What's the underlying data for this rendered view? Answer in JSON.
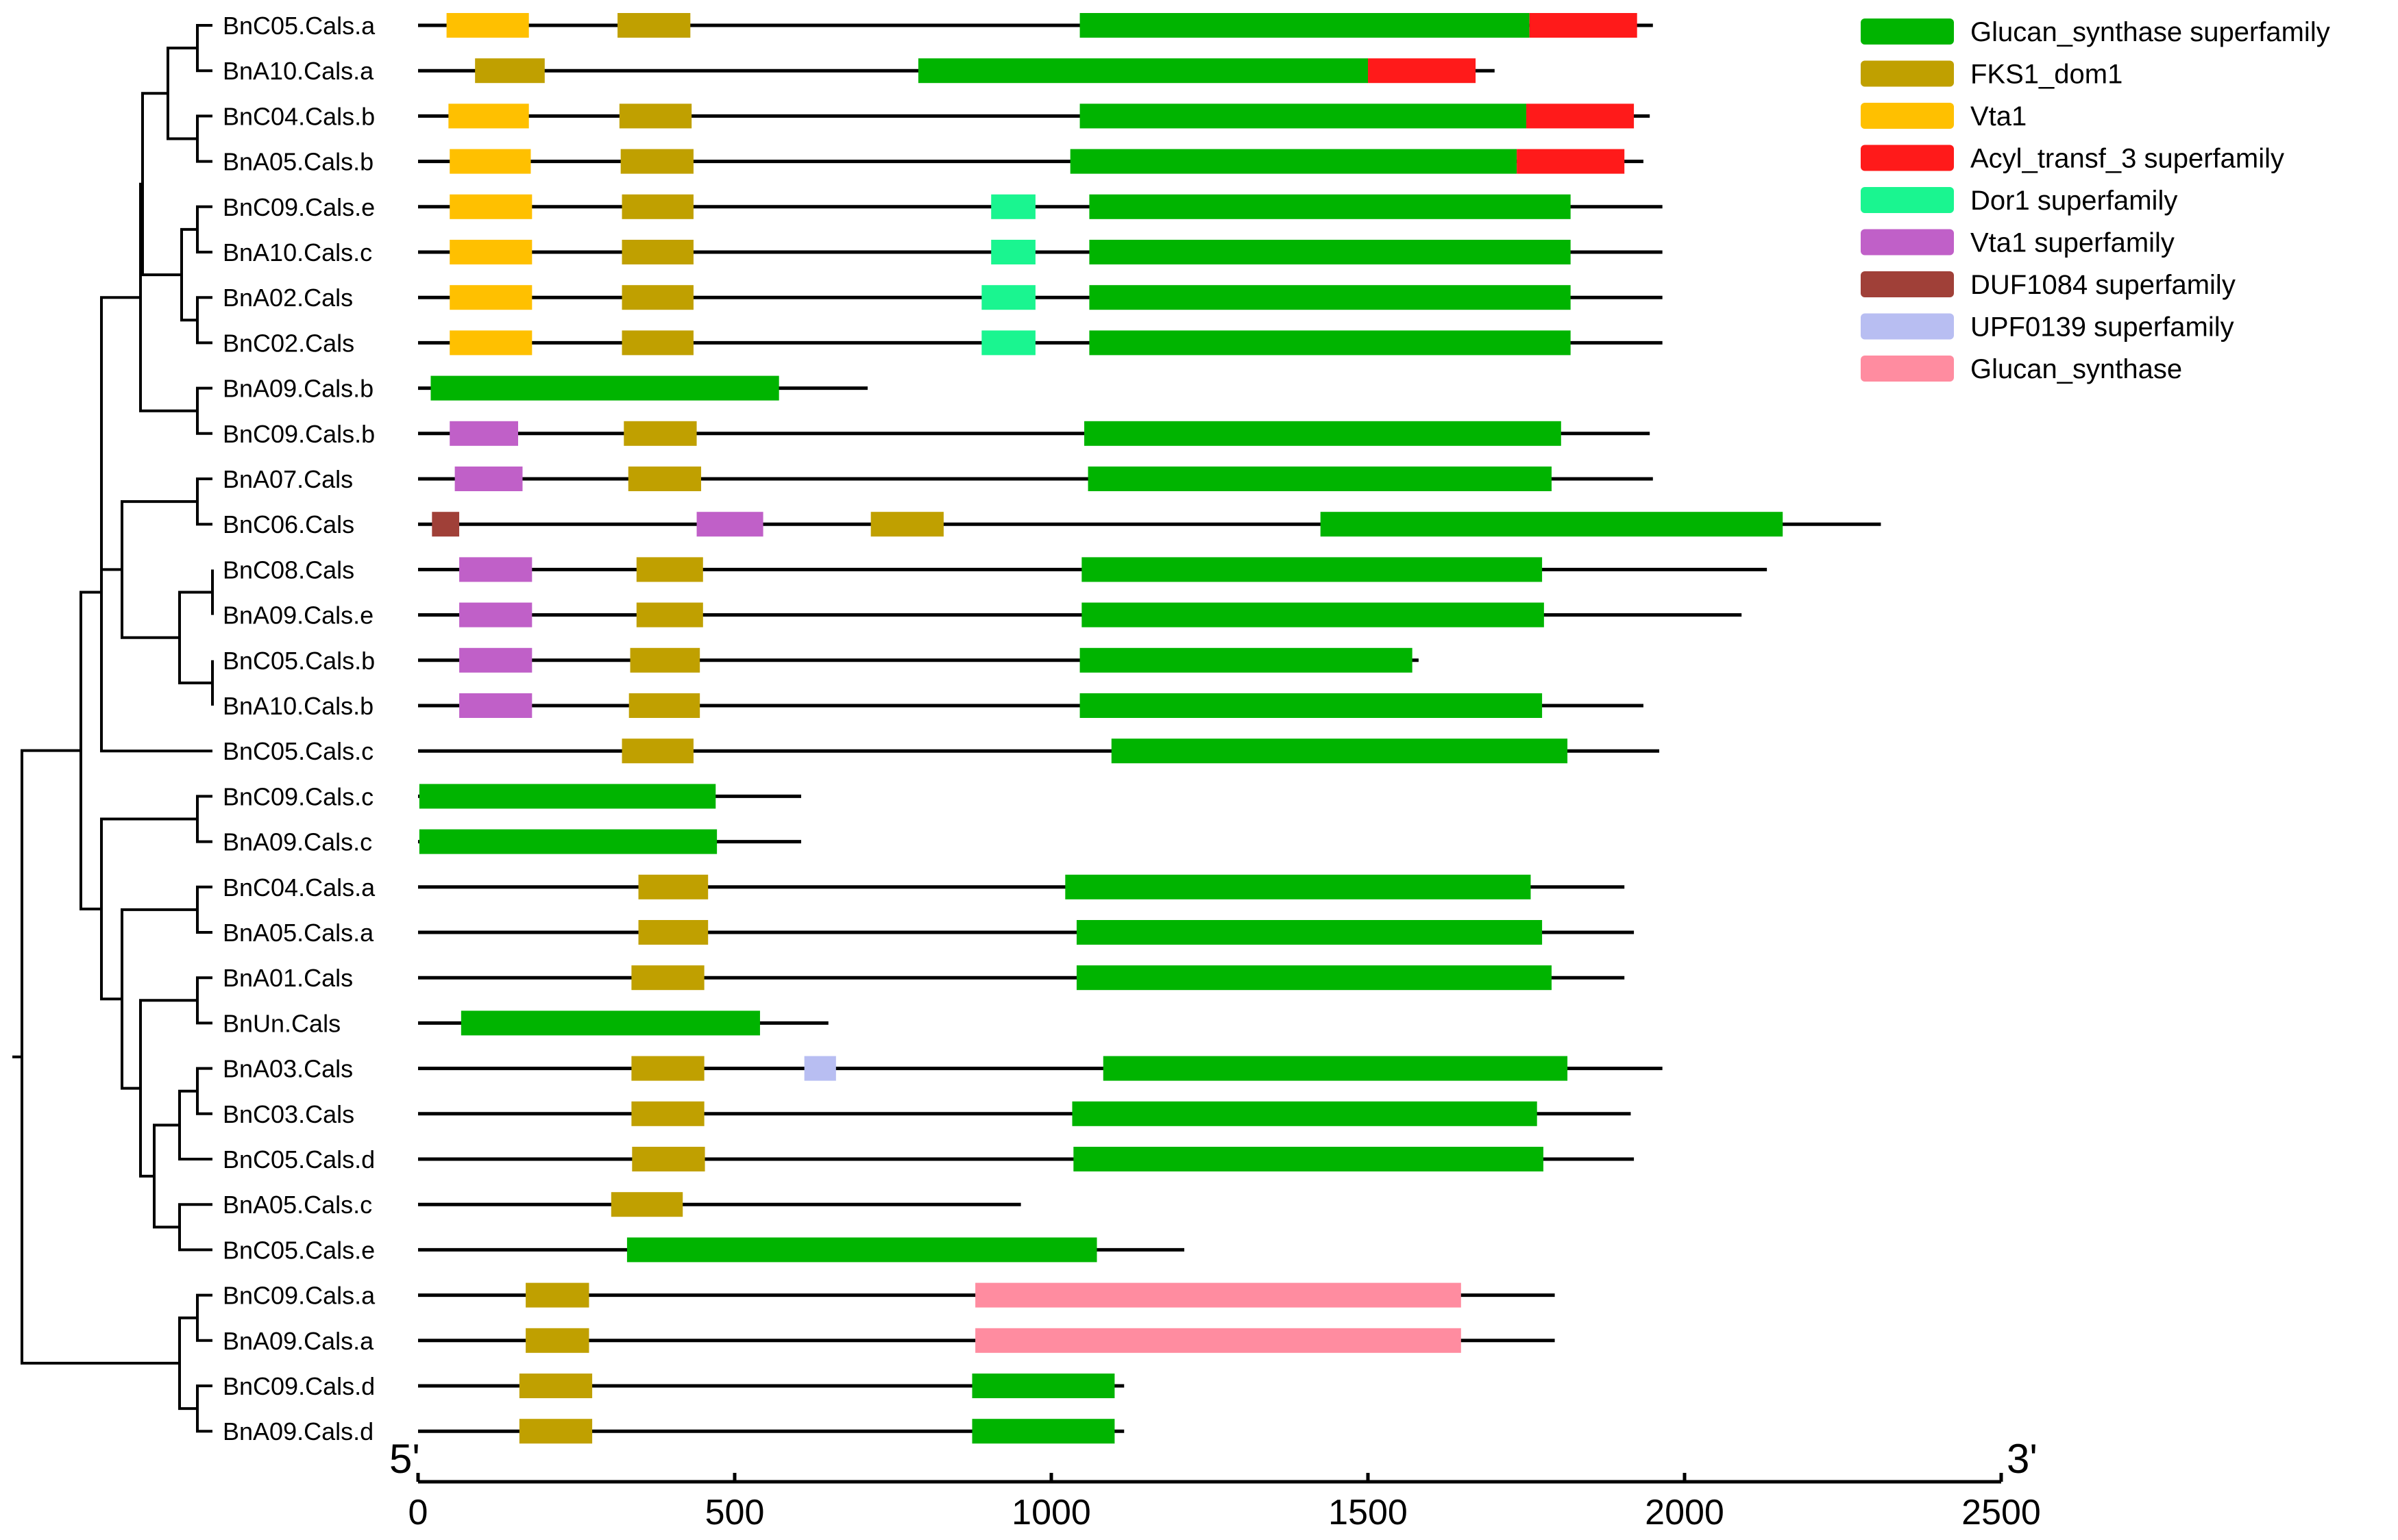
{
  "colors": {
    "Glucan_synthase superfamily": "#00B400",
    "FKS1_dom1": "#C0A000",
    "Vta1": "#FFC000",
    "Acyl_transf_3 superfamily": "#FF1A1A",
    "Dor1 superfamily": "#1AF590",
    "Vta1 superfamily": "#C060C8",
    "DUF1084 superfamily": "#A04038",
    "UPF0139 superfamily": "#B8BEF2",
    "Glucan_synthase": "#FF8CA0"
  },
  "legend": [
    "Glucan_synthase superfamily",
    "FKS1_dom1",
    "Vta1",
    "Acyl_transf_3 superfamily",
    "Dor1 superfamily",
    "Vta1 superfamily",
    "DUF1084 superfamily",
    "UPF0139 superfamily",
    "Glucan_synthase"
  ],
  "axis": {
    "min": 0,
    "max": 2500,
    "ticks": [
      0,
      500,
      1000,
      1500,
      2000,
      2500
    ],
    "tick_labels": [
      "0",
      "500",
      "1000",
      "1500",
      "2000",
      "2500"
    ],
    "start_label": "5'",
    "end_label": "3'"
  },
  "genes": [
    {
      "name": "BnC05.Cals.a",
      "length": 1950,
      "domains": [
        {
          "type": "Vta1",
          "start": 45,
          "end": 175
        },
        {
          "type": "FKS1_dom1",
          "start": 315,
          "end": 430
        },
        {
          "type": "Glucan_synthase superfamily",
          "start": 1045,
          "end": 1755
        },
        {
          "type": "Acyl_transf_3 superfamily",
          "start": 1755,
          "end": 1925
        }
      ]
    },
    {
      "name": "BnA10.Cals.a",
      "length": 1700,
      "domains": [
        {
          "type": "FKS1_dom1",
          "start": 90,
          "end": 200
        },
        {
          "type": "Glucan_synthase superfamily",
          "start": 790,
          "end": 1500
        },
        {
          "type": "Acyl_transf_3 superfamily",
          "start": 1500,
          "end": 1670
        }
      ]
    },
    {
      "name": "BnC04.Cals.b",
      "length": 1945,
      "domains": [
        {
          "type": "Vta1",
          "start": 48,
          "end": 175
        },
        {
          "type": "FKS1_dom1",
          "start": 318,
          "end": 432
        },
        {
          "type": "Glucan_synthase superfamily",
          "start": 1045,
          "end": 1750
        },
        {
          "type": "Acyl_transf_3 superfamily",
          "start": 1750,
          "end": 1920
        }
      ]
    },
    {
      "name": "BnA05.Cals.b",
      "length": 1935,
      "domains": [
        {
          "type": "Vta1",
          "start": 50,
          "end": 178
        },
        {
          "type": "FKS1_dom1",
          "start": 320,
          "end": 435
        },
        {
          "type": "Glucan_synthase superfamily",
          "start": 1030,
          "end": 1735
        },
        {
          "type": "Acyl_transf_3 superfamily",
          "start": 1735,
          "end": 1905
        }
      ]
    },
    {
      "name": "BnC09.Cals.e",
      "length": 1965,
      "domains": [
        {
          "type": "Vta1",
          "start": 50,
          "end": 180
        },
        {
          "type": "FKS1_dom1",
          "start": 322,
          "end": 435
        },
        {
          "type": "Dor1 superfamily",
          "start": 905,
          "end": 975
        },
        {
          "type": "Glucan_synthase superfamily",
          "start": 1060,
          "end": 1820
        }
      ]
    },
    {
      "name": "BnA10.Cals.c",
      "length": 1965,
      "domains": [
        {
          "type": "Vta1",
          "start": 50,
          "end": 180
        },
        {
          "type": "FKS1_dom1",
          "start": 322,
          "end": 435
        },
        {
          "type": "Dor1 superfamily",
          "start": 905,
          "end": 975
        },
        {
          "type": "Glucan_synthase superfamily",
          "start": 1060,
          "end": 1820
        }
      ]
    },
    {
      "name": "BnA02.Cals",
      "length": 1965,
      "domains": [
        {
          "type": "Vta1",
          "start": 50,
          "end": 180
        },
        {
          "type": "FKS1_dom1",
          "start": 322,
          "end": 435
        },
        {
          "type": "Dor1 superfamily",
          "start": 890,
          "end": 975
        },
        {
          "type": "Glucan_synthase superfamily",
          "start": 1060,
          "end": 1820
        }
      ]
    },
    {
      "name": "BnC02.Cals",
      "length": 1965,
      "domains": [
        {
          "type": "Vta1",
          "start": 50,
          "end": 180
        },
        {
          "type": "FKS1_dom1",
          "start": 322,
          "end": 435
        },
        {
          "type": "Dor1 superfamily",
          "start": 890,
          "end": 975
        },
        {
          "type": "Glucan_synthase superfamily",
          "start": 1060,
          "end": 1820
        }
      ]
    },
    {
      "name": "BnA09.Cals.b",
      "length": 710,
      "domains": [
        {
          "type": "Glucan_synthase superfamily",
          "start": 20,
          "end": 570
        }
      ]
    },
    {
      "name": "BnC09.Cals.b",
      "length": 1945,
      "domains": [
        {
          "type": "Vta1 superfamily",
          "start": 50,
          "end": 158
        },
        {
          "type": "FKS1_dom1",
          "start": 325,
          "end": 440
        },
        {
          "type": "Glucan_synthase superfamily",
          "start": 1052,
          "end": 1805
        }
      ]
    },
    {
      "name": "BnA07.Cals",
      "length": 1950,
      "domains": [
        {
          "type": "Vta1 superfamily",
          "start": 58,
          "end": 165
        },
        {
          "type": "FKS1_dom1",
          "start": 332,
          "end": 447
        },
        {
          "type": "Glucan_synthase superfamily",
          "start": 1058,
          "end": 1790
        }
      ]
    },
    {
      "name": "BnC06.Cals",
      "length": 2310,
      "domains": [
        {
          "type": "DUF1084 superfamily",
          "start": 22,
          "end": 65
        },
        {
          "type": "Vta1 superfamily",
          "start": 440,
          "end": 545
        },
        {
          "type": "FKS1_dom1",
          "start": 715,
          "end": 830
        },
        {
          "type": "Glucan_synthase superfamily",
          "start": 1425,
          "end": 2155
        }
      ]
    },
    {
      "name": "BnC08.Cals",
      "length": 2130,
      "domains": [
        {
          "type": "Vta1 superfamily",
          "start": 65,
          "end": 180
        },
        {
          "type": "FKS1_dom1",
          "start": 345,
          "end": 450
        },
        {
          "type": "Glucan_synthase superfamily",
          "start": 1048,
          "end": 1775
        }
      ]
    },
    {
      "name": "BnA09.Cals.e",
      "length": 2090,
      "domains": [
        {
          "type": "Vta1 superfamily",
          "start": 65,
          "end": 180
        },
        {
          "type": "FKS1_dom1",
          "start": 345,
          "end": 450
        },
        {
          "type": "Glucan_synthase superfamily",
          "start": 1048,
          "end": 1778
        }
      ]
    },
    {
      "name": "BnC05.Cals.b",
      "length": 1580,
      "domains": [
        {
          "type": "Vta1 superfamily",
          "start": 65,
          "end": 180
        },
        {
          "type": "FKS1_dom1",
          "start": 335,
          "end": 445
        },
        {
          "type": "Glucan_synthase superfamily",
          "start": 1045,
          "end": 1570
        }
      ]
    },
    {
      "name": "BnA10.Cals.b",
      "length": 1935,
      "domains": [
        {
          "type": "Vta1 superfamily",
          "start": 65,
          "end": 180
        },
        {
          "type": "FKS1_dom1",
          "start": 333,
          "end": 445
        },
        {
          "type": "Glucan_synthase superfamily",
          "start": 1045,
          "end": 1775
        }
      ]
    },
    {
      "name": "BnC05.Cals.c",
      "length": 1960,
      "domains": [
        {
          "type": "FKS1_dom1",
          "start": 322,
          "end": 435
        },
        {
          "type": "Glucan_synthase superfamily",
          "start": 1095,
          "end": 1815
        }
      ]
    },
    {
      "name": "BnC09.Cals.c",
      "length": 605,
      "domains": [
        {
          "type": "Glucan_synthase superfamily",
          "start": 2,
          "end": 470
        }
      ]
    },
    {
      "name": "BnA09.Cals.c",
      "length": 605,
      "domains": [
        {
          "type": "Glucan_synthase superfamily",
          "start": 2,
          "end": 472
        }
      ]
    },
    {
      "name": "BnC04.Cals.a",
      "length": 1905,
      "domains": [
        {
          "type": "FKS1_dom1",
          "start": 348,
          "end": 458
        },
        {
          "type": "Glucan_synthase superfamily",
          "start": 1022,
          "end": 1757
        }
      ]
    },
    {
      "name": "BnA05.Cals.a",
      "length": 1920,
      "domains": [
        {
          "type": "FKS1_dom1",
          "start": 348,
          "end": 458
        },
        {
          "type": "Glucan_synthase superfamily",
          "start": 1040,
          "end": 1775
        }
      ]
    },
    {
      "name": "BnA01.Cals",
      "length": 1905,
      "domains": [
        {
          "type": "FKS1_dom1",
          "start": 337,
          "end": 452
        },
        {
          "type": "Glucan_synthase superfamily",
          "start": 1040,
          "end": 1790
        }
      ]
    },
    {
      "name": "BnUn.Cals",
      "length": 648,
      "domains": [
        {
          "type": "Glucan_synthase superfamily",
          "start": 68,
          "end": 540
        }
      ]
    },
    {
      "name": "BnA03.Cals",
      "length": 1965,
      "domains": [
        {
          "type": "FKS1_dom1",
          "start": 337,
          "end": 452
        },
        {
          "type": "UPF0139 superfamily",
          "start": 610,
          "end": 660
        },
        {
          "type": "Glucan_synthase superfamily",
          "start": 1082,
          "end": 1815
        }
      ]
    },
    {
      "name": "BnC03.Cals",
      "length": 1915,
      "domains": [
        {
          "type": "FKS1_dom1",
          "start": 337,
          "end": 452
        },
        {
          "type": "Glucan_synthase superfamily",
          "start": 1033,
          "end": 1767
        }
      ]
    },
    {
      "name": "BnC05.Cals.d",
      "length": 1920,
      "domains": [
        {
          "type": "FKS1_dom1",
          "start": 338,
          "end": 453
        },
        {
          "type": "Glucan_synthase superfamily",
          "start": 1035,
          "end": 1777
        }
      ]
    },
    {
      "name": "BnA05.Cals.c",
      "length": 952,
      "domains": [
        {
          "type": "FKS1_dom1",
          "start": 305,
          "end": 418
        }
      ]
    },
    {
      "name": "BnC05.Cals.e",
      "length": 1210,
      "domains": [
        {
          "type": "Glucan_synthase superfamily",
          "start": 330,
          "end": 1072
        }
      ]
    },
    {
      "name": "BnC09.Cals.a",
      "length": 1795,
      "domains": [
        {
          "type": "FKS1_dom1",
          "start": 170,
          "end": 270
        },
        {
          "type": "Glucan_synthase",
          "start": 880,
          "end": 1647
        }
      ]
    },
    {
      "name": "BnA09.Cals.a",
      "length": 1795,
      "domains": [
        {
          "type": "FKS1_dom1",
          "start": 170,
          "end": 270
        },
        {
          "type": "Glucan_synthase",
          "start": 880,
          "end": 1647
        }
      ]
    },
    {
      "name": "BnC09.Cals.d",
      "length": 1115,
      "domains": [
        {
          "type": "FKS1_dom1",
          "start": 160,
          "end": 275
        },
        {
          "type": "Glucan_synthase superfamily",
          "start": 875,
          "end": 1100
        }
      ]
    },
    {
      "name": "BnA09.Cals.d",
      "length": 1115,
      "domains": [
        {
          "type": "FKS1_dom1",
          "start": 160,
          "end": 275
        },
        {
          "type": "Glucan_synthase superfamily",
          "start": 875,
          "end": 1100
        }
      ]
    }
  ]
}
